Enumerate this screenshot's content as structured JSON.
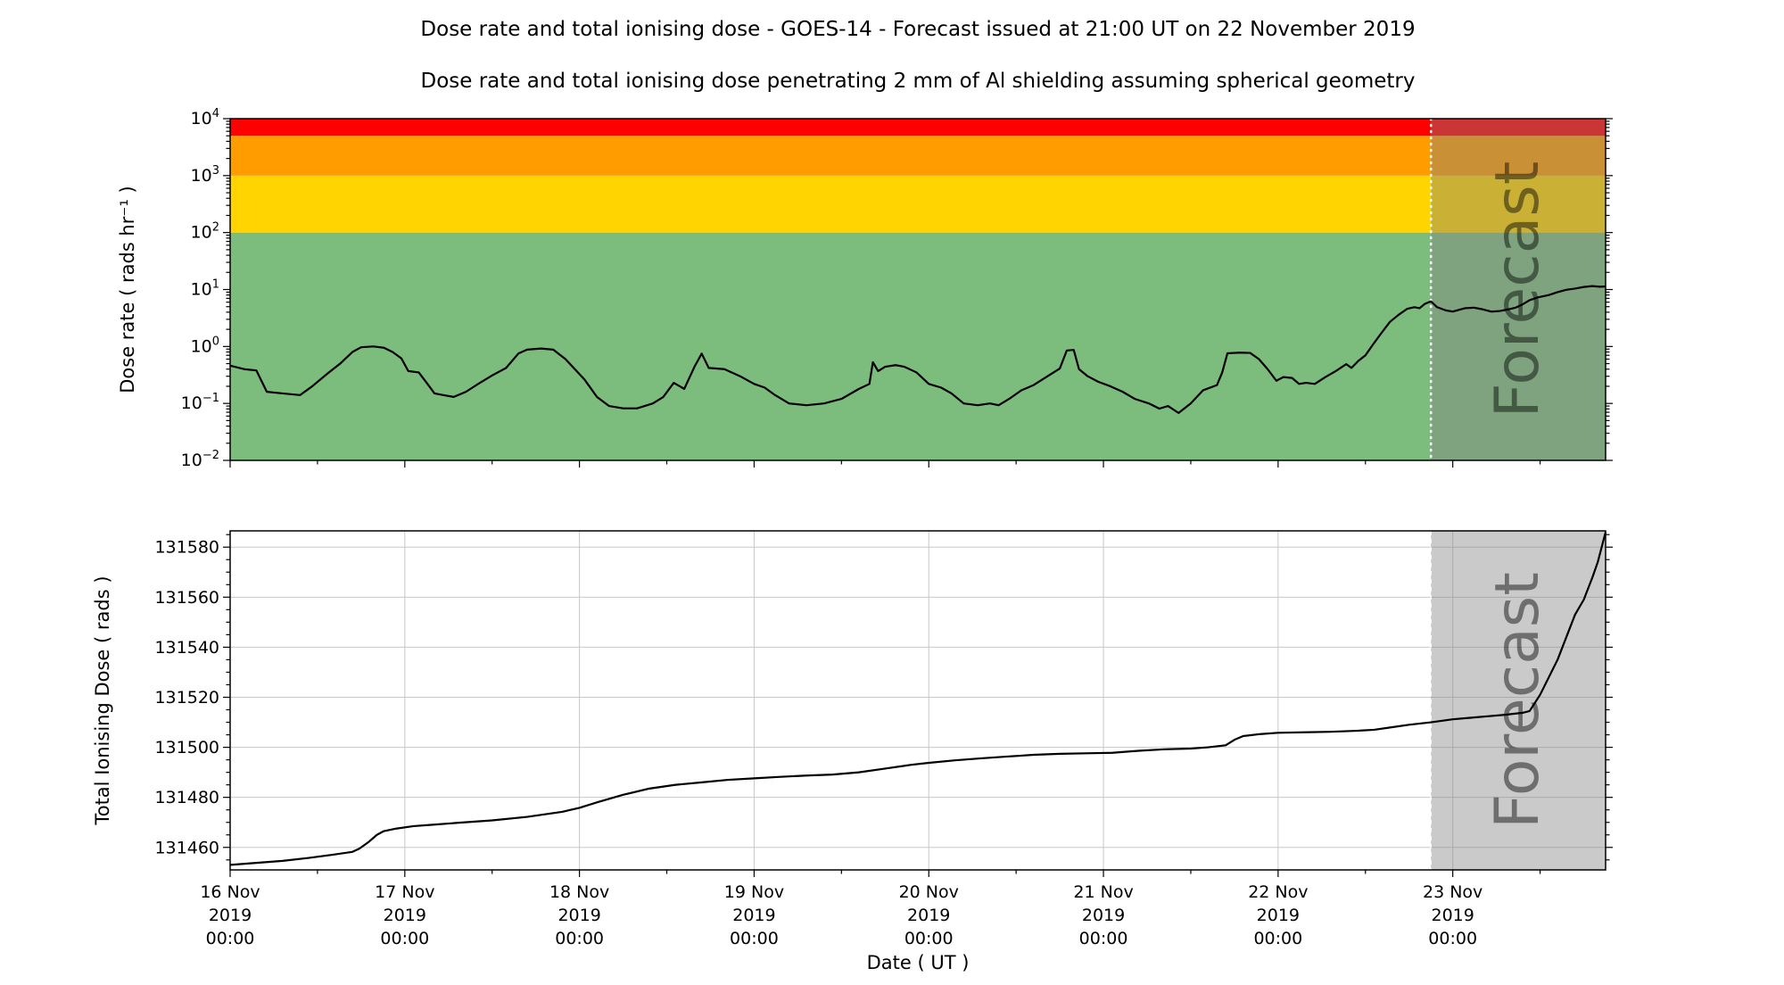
{
  "title": "Dose rate and total ionising dose - GOES-14 - Forecast issued at 21:00 UT on 22 November 2019",
  "subtitle": "Dose rate and total ionising dose penetrating 2 mm of Al shielding assuming spherical geometry",
  "forecast_label": "Forecast",
  "x_axis": {
    "label": "Date ( UT )",
    "ticks": [
      {
        "date": "16 Nov",
        "year": "2019",
        "time": "00:00"
      },
      {
        "date": "17 Nov",
        "year": "2019",
        "time": "00:00"
      },
      {
        "date": "18 Nov",
        "year": "2019",
        "time": "00:00"
      },
      {
        "date": "19 Nov",
        "year": "2019",
        "time": "00:00"
      },
      {
        "date": "20 Nov",
        "year": "2019",
        "time": "00:00"
      },
      {
        "date": "21 Nov",
        "year": "2019",
        "time": "00:00"
      },
      {
        "date": "22 Nov",
        "year": "2019",
        "time": "00:00"
      },
      {
        "date": "23 Nov",
        "year": "2019",
        "time": "00:00"
      }
    ]
  },
  "colors": {
    "band_green": "#7CBC7C",
    "band_yellow": "#FFD400",
    "band_orange": "#FF9C00",
    "band_red": "#FF0000",
    "forecast_overlay": "rgba(128,128,128,0.42)",
    "forecast_boundary": "#ffffff",
    "grid": "#c8c8c8",
    "line": "#000000",
    "watermark": "#777777"
  },
  "chart_data": [
    {
      "type": "line",
      "name": "dose-rate-panel",
      "ylabel": "Dose rate ( rads hr⁻¹ )",
      "yscale": "log",
      "ylim": [
        0.01,
        10000
      ],
      "yticks": [
        {
          "value": 10000,
          "base": "10",
          "exp": "4"
        },
        {
          "value": 1000,
          "base": "10",
          "exp": "3"
        },
        {
          "value": 100,
          "base": "10",
          "exp": "2"
        },
        {
          "value": 10,
          "base": "10",
          "exp": "1"
        },
        {
          "value": 1,
          "base": "10",
          "exp": "0"
        },
        {
          "value": 0.1,
          "base": "10",
          "exp": "−1"
        },
        {
          "value": 0.01,
          "base": "10",
          "exp": "−2"
        }
      ],
      "x_unit": "days since 16 Nov 2019 00:00 UT",
      "xlim": [
        0,
        7.875
      ],
      "forecast_start_x": 6.875,
      "threshold_bands": [
        {
          "name": "green",
          "from": 0.01,
          "to": 100,
          "color": "#7CBC7C"
        },
        {
          "name": "yellow",
          "from": 100,
          "to": 1000,
          "color": "#FFD400"
        },
        {
          "name": "orange",
          "from": 1000,
          "to": 5000,
          "color": "#FF9C00"
        },
        {
          "name": "red",
          "from": 5000,
          "to": 10000,
          "color": "#FF0000"
        }
      ],
      "series": [
        {
          "name": "dose_rate",
          "color": "#000000",
          "points": [
            [
              0,
              0.46
            ],
            [
              0.08,
              0.4
            ],
            [
              0.15,
              0.38
            ],
            [
              0.21,
              0.16
            ],
            [
              0.3,
              0.15
            ],
            [
              0.4,
              0.14
            ],
            [
              0.47,
              0.2
            ],
            [
              0.56,
              0.34
            ],
            [
              0.63,
              0.5
            ],
            [
              0.7,
              0.8
            ],
            [
              0.75,
              0.97
            ],
            [
              0.82,
              1.0
            ],
            [
              0.88,
              0.95
            ],
            [
              0.93,
              0.8
            ],
            [
              0.98,
              0.62
            ],
            [
              1.02,
              0.37
            ],
            [
              1.08,
              0.35
            ],
            [
              1.13,
              0.22
            ],
            [
              1.17,
              0.15
            ],
            [
              1.22,
              0.14
            ],
            [
              1.28,
              0.13
            ],
            [
              1.35,
              0.16
            ],
            [
              1.42,
              0.22
            ],
            [
              1.5,
              0.31
            ],
            [
              1.58,
              0.42
            ],
            [
              1.65,
              0.75
            ],
            [
              1.7,
              0.88
            ],
            [
              1.78,
              0.92
            ],
            [
              1.85,
              0.88
            ],
            [
              1.92,
              0.6
            ],
            [
              1.98,
              0.38
            ],
            [
              2.03,
              0.26
            ],
            [
              2.1,
              0.13
            ],
            [
              2.17,
              0.09
            ],
            [
              2.25,
              0.082
            ],
            [
              2.33,
              0.082
            ],
            [
              2.42,
              0.1
            ],
            [
              2.48,
              0.13
            ],
            [
              2.54,
              0.23
            ],
            [
              2.6,
              0.18
            ],
            [
              2.66,
              0.45
            ],
            [
              2.7,
              0.75
            ],
            [
              2.74,
              0.42
            ],
            [
              2.83,
              0.4
            ],
            [
              2.92,
              0.3
            ],
            [
              3,
              0.22
            ],
            [
              3.06,
              0.19
            ],
            [
              3.12,
              0.14
            ],
            [
              3.2,
              0.1
            ],
            [
              3.3,
              0.093
            ],
            [
              3.4,
              0.1
            ],
            [
              3.5,
              0.12
            ],
            [
              3.6,
              0.18
            ],
            [
              3.66,
              0.22
            ],
            [
              3.68,
              0.53
            ],
            [
              3.71,
              0.37
            ],
            [
              3.75,
              0.44
            ],
            [
              3.81,
              0.47
            ],
            [
              3.86,
              0.44
            ],
            [
              3.93,
              0.35
            ],
            [
              4,
              0.22
            ],
            [
              4.07,
              0.19
            ],
            [
              4.13,
              0.15
            ],
            [
              4.2,
              0.1
            ],
            [
              4.28,
              0.093
            ],
            [
              4.35,
              0.1
            ],
            [
              4.4,
              0.093
            ],
            [
              4.46,
              0.12
            ],
            [
              4.53,
              0.17
            ],
            [
              4.6,
              0.21
            ],
            [
              4.68,
              0.3
            ],
            [
              4.75,
              0.41
            ],
            [
              4.79,
              0.85
            ],
            [
              4.83,
              0.87
            ],
            [
              4.86,
              0.4
            ],
            [
              4.91,
              0.3
            ],
            [
              4.97,
              0.24
            ],
            [
              5.04,
              0.2
            ],
            [
              5.11,
              0.16
            ],
            [
              5.18,
              0.12
            ],
            [
              5.26,
              0.1
            ],
            [
              5.32,
              0.081
            ],
            [
              5.37,
              0.09
            ],
            [
              5.43,
              0.068
            ],
            [
              5.5,
              0.1
            ],
            [
              5.57,
              0.17
            ],
            [
              5.65,
              0.21
            ],
            [
              5.68,
              0.35
            ],
            [
              5.71,
              0.76
            ],
            [
              5.78,
              0.78
            ],
            [
              5.84,
              0.77
            ],
            [
              5.89,
              0.6
            ],
            [
              5.94,
              0.4
            ],
            [
              5.99,
              0.25
            ],
            [
              6.03,
              0.29
            ],
            [
              6.08,
              0.28
            ],
            [
              6.12,
              0.22
            ],
            [
              6.16,
              0.23
            ],
            [
              6.21,
              0.22
            ],
            [
              6.27,
              0.29
            ],
            [
              6.33,
              0.37
            ],
            [
              6.39,
              0.49
            ],
            [
              6.42,
              0.42
            ],
            [
              6.46,
              0.56
            ],
            [
              6.5,
              0.7
            ],
            [
              6.54,
              1.05
            ],
            [
              6.59,
              1.7
            ],
            [
              6.64,
              2.7
            ],
            [
              6.69,
              3.6
            ],
            [
              6.74,
              4.6
            ],
            [
              6.78,
              4.9
            ],
            [
              6.81,
              4.7
            ],
            [
              6.84,
              5.6
            ],
            [
              6.875,
              6.2
            ],
            [
              6.91,
              4.9
            ],
            [
              6.96,
              4.3
            ],
            [
              7,
              4.1
            ],
            [
              7.07,
              4.7
            ],
            [
              7.12,
              4.8
            ],
            [
              7.17,
              4.5
            ],
            [
              7.22,
              4.1
            ],
            [
              7.27,
              4.2
            ],
            [
              7.32,
              4.5
            ],
            [
              7.36,
              4.8
            ],
            [
              7.4,
              5.5
            ],
            [
              7.44,
              6.5
            ],
            [
              7.49,
              7.3
            ],
            [
              7.55,
              8
            ],
            [
              7.6,
              9
            ],
            [
              7.65,
              9.9
            ],
            [
              7.7,
              10.4
            ],
            [
              7.75,
              11.1
            ],
            [
              7.8,
              11.5
            ],
            [
              7.84,
              11.2
            ],
            [
              7.875,
              11.3
            ]
          ]
        }
      ]
    },
    {
      "type": "line",
      "name": "total-dose-panel",
      "ylabel": "Total Ionising Dose ( rads )",
      "yscale": "linear",
      "ylim": [
        131451,
        131586.5
      ],
      "yticks": [
        131580,
        131560,
        131540,
        131520,
        131500,
        131480,
        131460
      ],
      "ytick_minor_step": 5,
      "x_unit": "days since 16 Nov 2019 00:00 UT",
      "xlim": [
        0,
        7.875
      ],
      "forecast_start_x": 6.875,
      "grid": true,
      "series": [
        {
          "name": "total_ionising_dose",
          "color": "#000000",
          "points": [
            [
              0,
              131453
            ],
            [
              0.15,
              131453.8
            ],
            [
              0.3,
              131454.6
            ],
            [
              0.45,
              131455.8
            ],
            [
              0.58,
              131457
            ],
            [
              0.7,
              131458.2
            ],
            [
              0.74,
              131459.5
            ],
            [
              0.79,
              131462
            ],
            [
              0.84,
              131465
            ],
            [
              0.88,
              131466.5
            ],
            [
              0.95,
              131467.5
            ],
            [
              1.05,
              131468.5
            ],
            [
              1.15,
              131469
            ],
            [
              1.3,
              131469.8
            ],
            [
              1.5,
              131470.8
            ],
            [
              1.7,
              131472.2
            ],
            [
              1.9,
              131474.2
            ],
            [
              2,
              131475.8
            ],
            [
              2.1,
              131478
            ],
            [
              2.25,
              131481
            ],
            [
              2.4,
              131483.5
            ],
            [
              2.55,
              131485
            ],
            [
              2.7,
              131486
            ],
            [
              2.85,
              131487
            ],
            [
              3,
              131487.6
            ],
            [
              3.15,
              131488.2
            ],
            [
              3.3,
              131488.7
            ],
            [
              3.45,
              131489.1
            ],
            [
              3.6,
              131490
            ],
            [
              3.75,
              131491.5
            ],
            [
              3.9,
              131493
            ],
            [
              4,
              131493.8
            ],
            [
              4.15,
              131494.8
            ],
            [
              4.3,
              131495.6
            ],
            [
              4.45,
              131496.3
            ],
            [
              4.6,
              131497
            ],
            [
              4.75,
              131497.4
            ],
            [
              4.9,
              131497.6
            ],
            [
              5.05,
              131497.8
            ],
            [
              5.2,
              131498.6
            ],
            [
              5.35,
              131499.2
            ],
            [
              5.5,
              131499.5
            ],
            [
              5.6,
              131500
            ],
            [
              5.7,
              131500.8
            ],
            [
              5.75,
              131503
            ],
            [
              5.8,
              131504.5
            ],
            [
              5.9,
              131505.3
            ],
            [
              6,
              131505.8
            ],
            [
              6.15,
              131506
            ],
            [
              6.3,
              131506.2
            ],
            [
              6.45,
              131506.6
            ],
            [
              6.55,
              131507
            ],
            [
              6.65,
              131508
            ],
            [
              6.75,
              131509
            ],
            [
              6.875,
              131510
            ],
            [
              7,
              131511.2
            ],
            [
              7.1,
              131511.8
            ],
            [
              7.2,
              131512.4
            ],
            [
              7.3,
              131513
            ],
            [
              7.4,
              131513.8
            ],
            [
              7.44,
              131514.5
            ],
            [
              7.5,
              131521
            ],
            [
              7.55,
              131528
            ],
            [
              7.6,
              131535
            ],
            [
              7.65,
              131544
            ],
            [
              7.7,
              131553
            ],
            [
              7.75,
              131559
            ],
            [
              7.8,
              131568
            ],
            [
              7.83,
              131574
            ],
            [
              7.86,
              131582
            ],
            [
              7.875,
              131586
            ]
          ]
        }
      ]
    }
  ]
}
